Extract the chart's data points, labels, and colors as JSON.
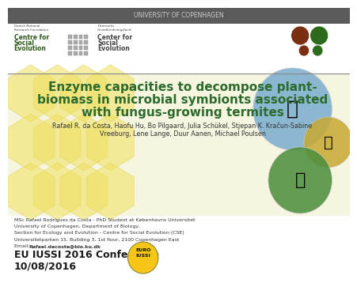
{
  "title_line1": "Enzyme capacities to decompose plant-",
  "title_line2": "biomass in microbial symbionts associated",
  "title_line3": "with fungus-growing termites",
  "title_color": "#2d6a2d",
  "authors_line1": "Rafael R. da Costa, Haofu Hu, Bo Pilgaard, Julia Schükel, Stjepan K. Kračun‐Sabine",
  "authors_line2": "Vreeburg, Lene Lange, Duur Aanen, Michael Poulsen",
  "authors_color": "#333333",
  "bio_line1": "MSc Rafael Rodrigues da Costa - PhD Student at Københavns Universitet",
  "bio_line2": "University of Copenhagen, Department of Biology,",
  "bio_line3": "Section for Ecology and Evolution - Centre for Social Evolution (CSE)",
  "bio_line4": "Universitetparken 15, Building 3, 1st floor, 2100 Copenhagen East",
  "bio_line5": "Email: ",
  "bio_email": "Rafael.dacosta@bio.ku.dk",
  "conference_line1": "EU IUSSI 2016 Conference",
  "conference_line2": "10/08/2016",
  "top_bar_color": "#5a5a5a",
  "top_text": "UNIVERSITY OF COPENHAGEN",
  "top_text_color": "#cccccc",
  "separator_color": "#888888",
  "honeycomb_color": "#f0e060",
  "honeycomb_edge": "#e8d860",
  "header_left_small": "Danish National\nResearch Foundation",
  "header_left1": "Centre for",
  "header_left2": "Social",
  "header_left3": "Evolution",
  "header_left_color": "#2d5a1b",
  "header_right_small": "Danmarks\nGrundforskningsfond",
  "header_right1": "Center for",
  "header_right2": "Social",
  "header_right3": "Evolution",
  "header_right_color": "#444444",
  "circle1_color": "#7a3010",
  "circle2_color": "#2d6a1b",
  "circle3_color": "#7a3010",
  "circle4_color": "#2d6a1b",
  "body_bg": "#f5f5e0",
  "bottom_bg": "#ffffff"
}
